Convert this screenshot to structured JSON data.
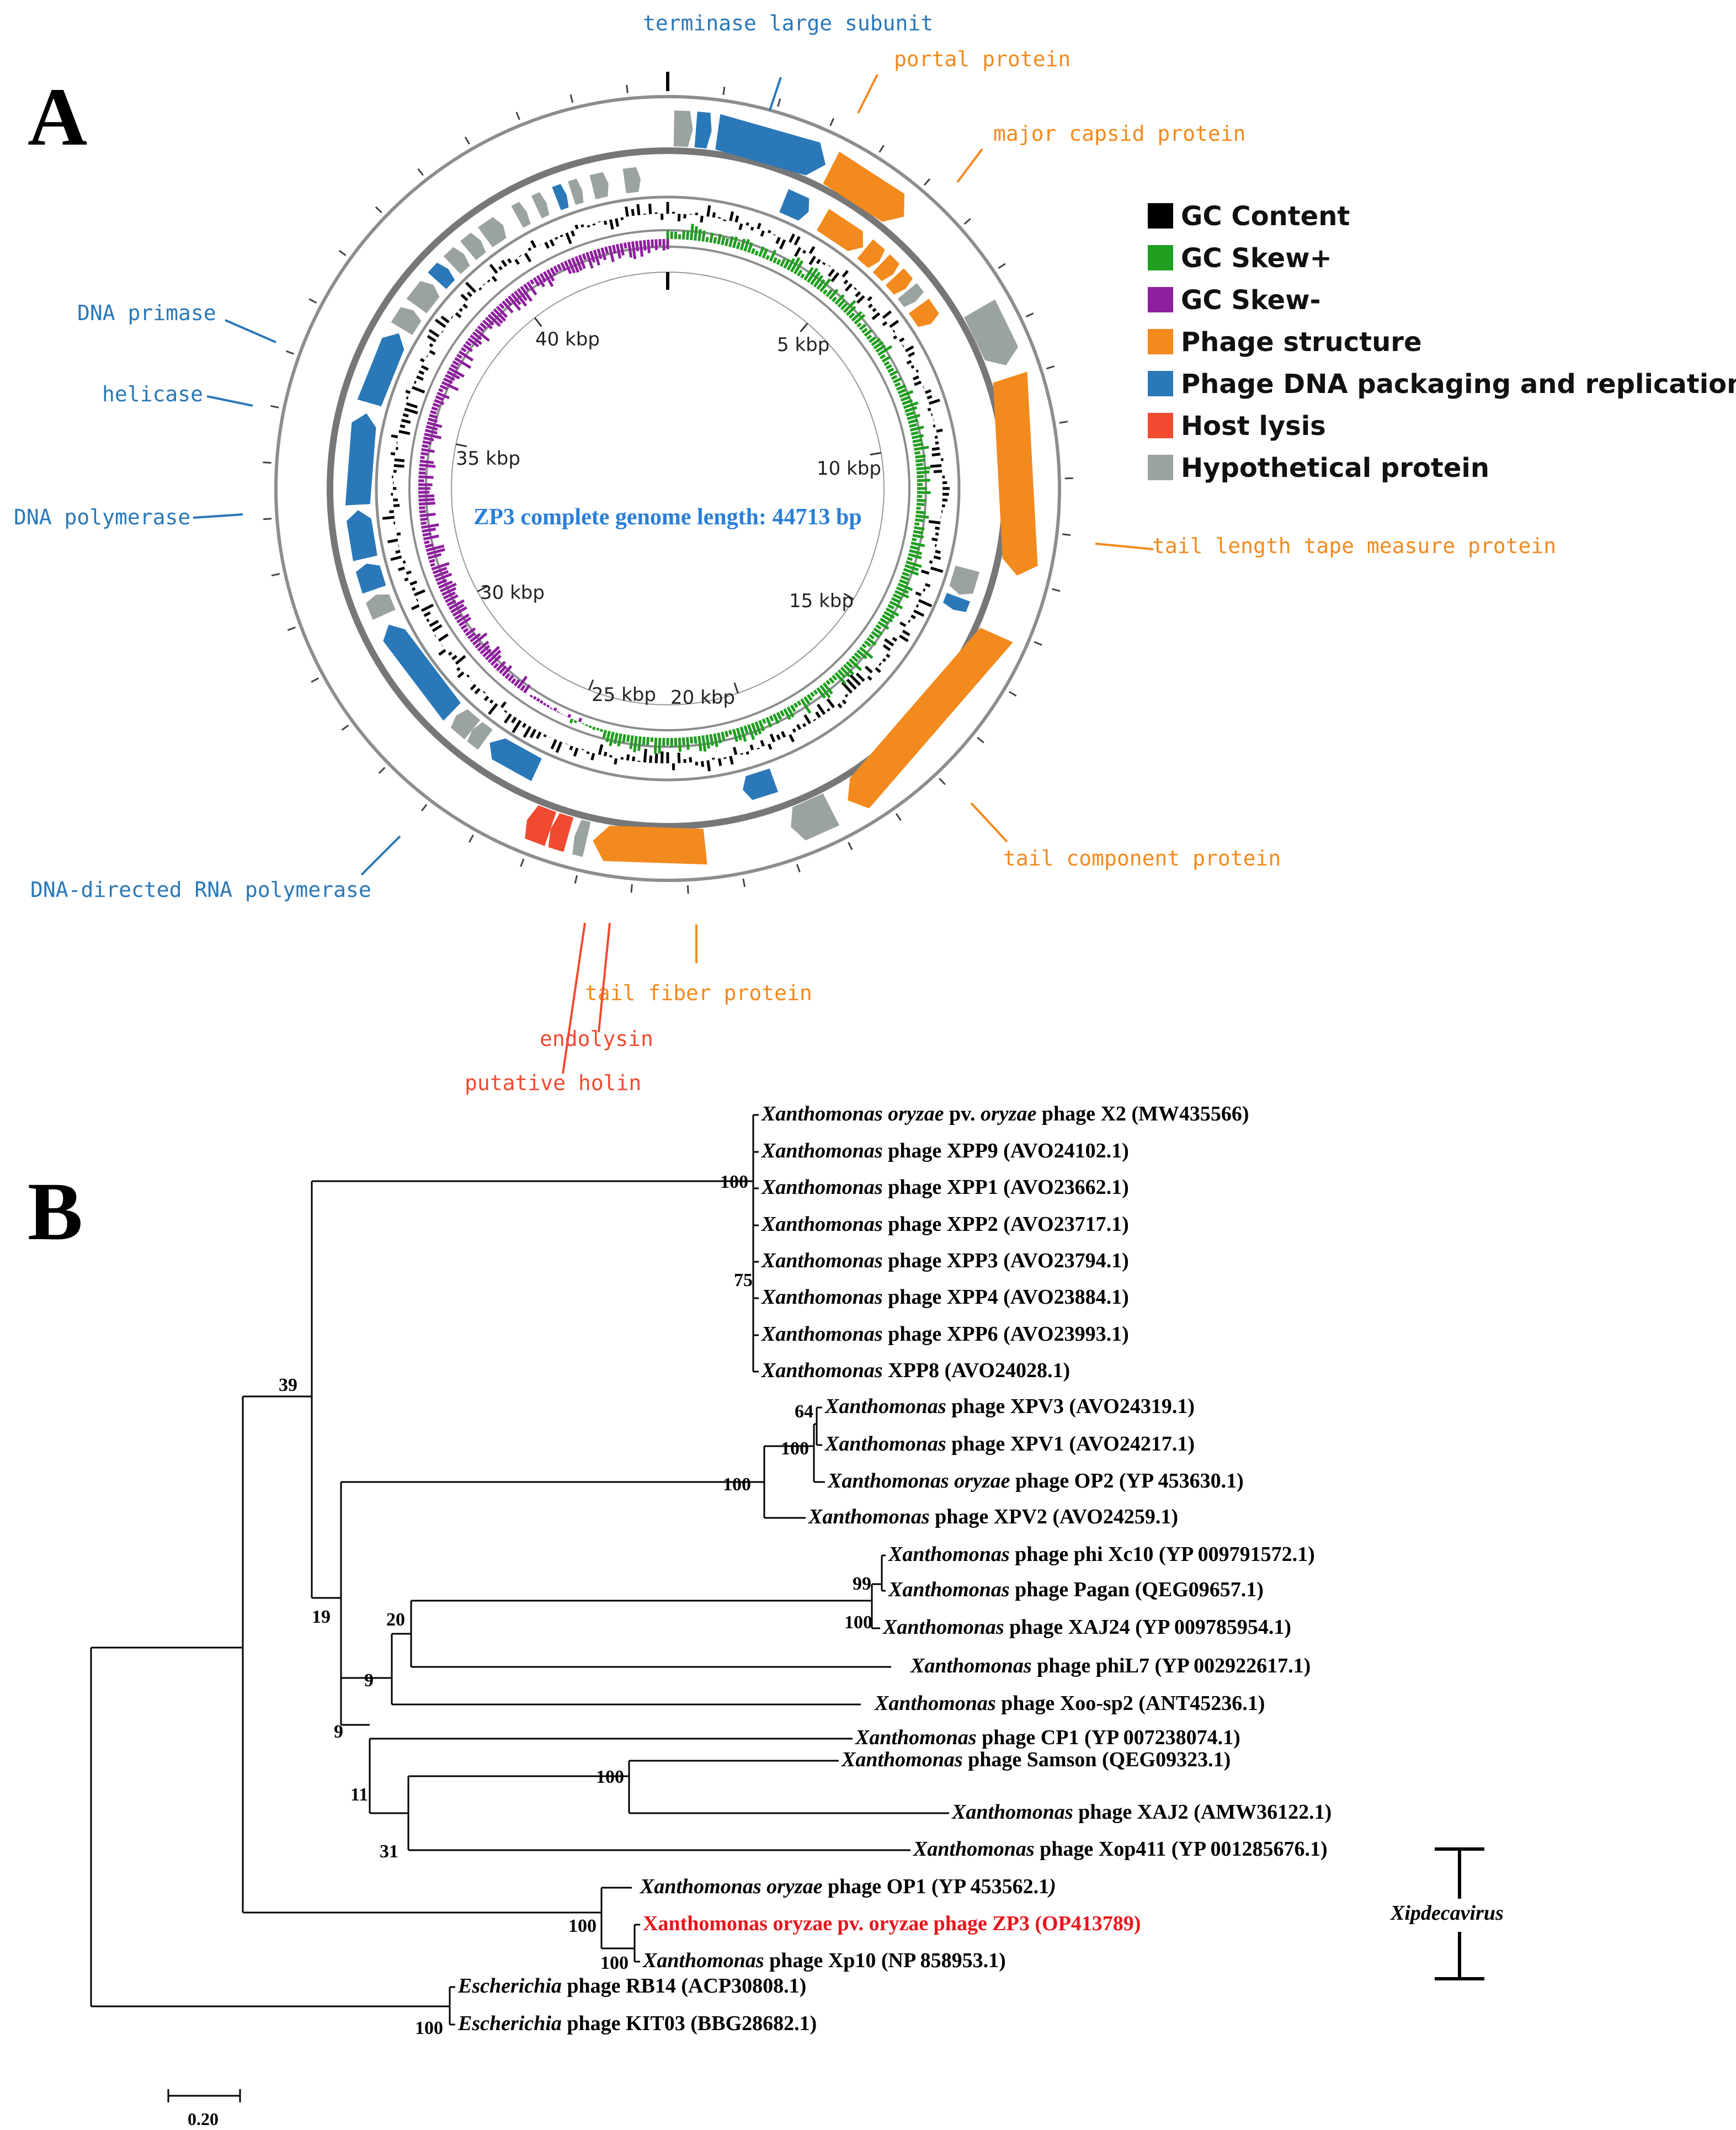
{
  "panels": {
    "a": "A",
    "b": "B"
  },
  "colors": {
    "gc_content": "#000000",
    "gc_skew_plus": "#1f9e1f",
    "gc_skew_minus": "#8e1f9e",
    "structure": "#f28a1e",
    "packaging": "#2a78b8",
    "lysis": "#f04a30",
    "hypothetical": "#9aa3a1",
    "highlight": "#e8141b",
    "center_label": "#2b7fd6"
  },
  "genome_map": {
    "center_label": "ZP3 complete genome length: 44713 bp",
    "kbp_labels": [
      "5 kbp",
      "10 kbp",
      "15 kbp",
      "20 kbp",
      "25 kbp",
      "30 kbp",
      "35 kbp",
      "40 kbp"
    ],
    "callouts": [
      {
        "text": "terminase large subunit",
        "category": "packaging"
      },
      {
        "text": "portal protein",
        "category": "structure"
      },
      {
        "text": "major capsid protein",
        "category": "structure"
      },
      {
        "text": "tail length tape measure protein",
        "category": "structure"
      },
      {
        "text": "tail component protein",
        "category": "structure"
      },
      {
        "text": "tail fiber protein",
        "category": "structure"
      },
      {
        "text": "endolysin",
        "category": "lysis"
      },
      {
        "text": "putative holin",
        "category": "lysis"
      },
      {
        "text": "DNA-directed RNA polymerase",
        "category": "packaging"
      },
      {
        "text": "DNA polymerase",
        "category": "packaging"
      },
      {
        "text": "helicase",
        "category": "packaging"
      },
      {
        "text": "DNA primase",
        "category": "packaging"
      }
    ]
  },
  "legend": [
    {
      "label": "GC Content",
      "key": "gc_content"
    },
    {
      "label": "GC Skew+",
      "key": "gc_skew_plus"
    },
    {
      "label": "GC Skew-",
      "key": "gc_skew_minus"
    },
    {
      "label": "Phage structure",
      "key": "structure"
    },
    {
      "label": "Phage DNA packaging and replication",
      "key": "packaging"
    },
    {
      "label": "Host lysis",
      "key": "lysis"
    },
    {
      "label": "Hypothetical protein",
      "key": "hypothetical"
    }
  ],
  "tree": {
    "taxa": [
      {
        "pre": "",
        "it": "Xanthomonas oryzae",
        "mid": " pv. ",
        "it2": "oryzae",
        "post": " phage X2 (MW435566)"
      },
      {
        "pre": "",
        "it": "Xanthomonas",
        "mid": " phage XPP9 (AVO24102.1)",
        "it2": "",
        "post": ""
      },
      {
        "pre": "",
        "it": "Xanthomonas",
        "mid": " phage XPP1 (AVO23662.1)",
        "it2": "",
        "post": ""
      },
      {
        "pre": "",
        "it": "Xanthomonas",
        "mid": " phage XPP2 (AVO23717.1)",
        "it2": "",
        "post": ""
      },
      {
        "pre": "",
        "it": "Xanthomonas",
        "mid": " phage XPP3 (AVO23794.1)",
        "it2": "",
        "post": ""
      },
      {
        "pre": "",
        "it": "Xanthomonas",
        "mid": " phage XPP4 (AVO23884.1)",
        "it2": "",
        "post": ""
      },
      {
        "pre": "",
        "it": "Xanthomonas",
        "mid": " phage XPP6 (AVO23993.1)",
        "it2": "",
        "post": ""
      },
      {
        "pre": "",
        "it": "Xanthomonas",
        "mid": " XPP8 (AVO24028.1)",
        "it2": "",
        "post": ""
      },
      {
        "pre": "",
        "it": "Xanthomonas",
        "mid": " phage XPV3 (AVO24319.1)",
        "it2": "",
        "post": ""
      },
      {
        "pre": "",
        "it": "Xanthomonas",
        "mid": " phage XPV1 (AVO24217.1)",
        "it2": "",
        "post": ""
      },
      {
        "pre": "",
        "it": "Xanthomonas oryzae",
        "mid": " phage OP2 (YP 453630.1)",
        "it2": "",
        "post": ""
      },
      {
        "pre": "",
        "it": "Xanthomonas",
        "mid": " phage XPV2 (AVO24259.1)",
        "it2": "",
        "post": ""
      },
      {
        "pre": "",
        "it": "Xanthomonas",
        "mid": " phage phi Xc10 (YP 009791572.1)",
        "it2": "",
        "post": ""
      },
      {
        "pre": "",
        "it": "Xanthomonas",
        "mid": " phage Pagan (QEG09657.1)",
        "it2": "",
        "post": ""
      },
      {
        "pre": "",
        "it": "Xanthomonas",
        "mid": " phage XAJ24 (YP 009785954.1)",
        "it2": "",
        "post": ""
      },
      {
        "pre": "",
        "it": "Xanthomonas",
        "mid": " phage phiL7 (YP 002922617.1)",
        "it2": "",
        "post": ""
      },
      {
        "pre": "",
        "it": "Xanthomonas",
        "mid": " phage Xoo-sp2 (ANT45236.1)",
        "it2": "",
        "post": ""
      },
      {
        "pre": "",
        "it": "Xanthomonas",
        "mid": " phage CP1 (YP 007238074.1)",
        "it2": "",
        "post": ""
      },
      {
        "pre": "",
        "it": "Xanthomonas",
        "mid": " phage Samson (QEG09323.1)",
        "it2": "",
        "post": ""
      },
      {
        "pre": "",
        "it": "Xanthomonas",
        "mid": " phage XAJ2 (AMW36122.1)",
        "it2": "",
        "post": ""
      },
      {
        "pre": "",
        "it": "Xanthomonas",
        "mid": " phage Xop411 (YP 001285676.1)",
        "it2": "",
        "post": ""
      },
      {
        "pre": "",
        "it": "Xanthomonas oryzae",
        "mid": " phage OP1 (YP 453562.1",
        "it2": ")",
        "post": ""
      },
      {
        "pre": "",
        "it": "",
        "mid": "Xanthomonas oryzae pv. oryzae phage ZP3 (OP413789)",
        "it2": "",
        "post": "",
        "highlight": true
      },
      {
        "pre": "",
        "it": "Xanthomonas",
        "mid": " phage Xp10 (NP 858953.1)",
        "it2": "",
        "post": ""
      },
      {
        "pre": "",
        "it": "Escherichia",
        "mid": " phage RB14 (ACP30808.1)",
        "it2": "",
        "post": ""
      },
      {
        "pre": "",
        "it": "Escherichia",
        "mid": " phage KIT03 (BBG28682.1)",
        "it2": "",
        "post": ""
      }
    ],
    "bootstraps": [
      "100",
      "75",
      "64",
      "100",
      "100",
      "39",
      "99",
      "100",
      "20",
      "19",
      "9",
      "9",
      "100",
      "11",
      "31",
      "100",
      "100",
      "100"
    ],
    "genus_label": "Xipdecavirus",
    "scale_label": "0.20"
  }
}
